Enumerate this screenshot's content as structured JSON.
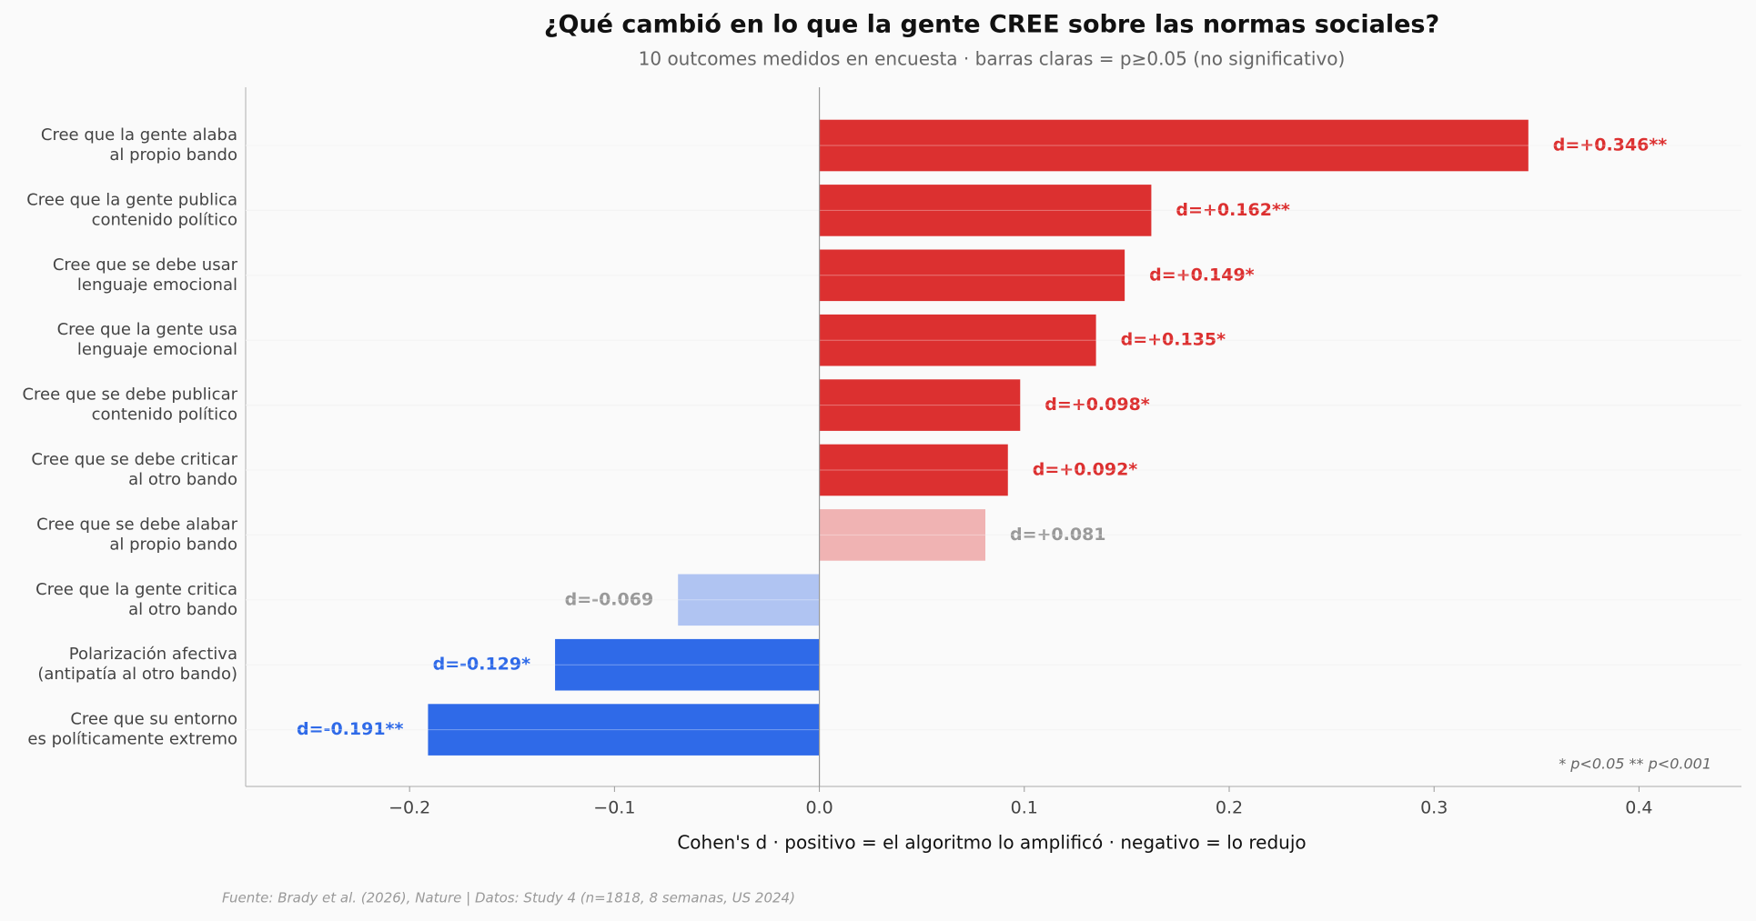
{
  "chart_data": {
    "type": "barh",
    "title": "¿Qué cambió en lo que la gente CREE sobre las normas sociales?",
    "subtitle": "10 outcomes medidos en encuesta · barras claras = p≥0.05 (no significativo)",
    "x_label": "Cohen's d  ·  positivo = el algoritmo lo amplificó  ·  negativo = lo redujo",
    "annotation": "* p<0.05    ** p<0.001",
    "source": "Fuente: Brady et al. (2026), Nature | Datos: Study 4 (n=1818, 8 semanas, US 2024)",
    "categories": [
      [
        "Cree que la gente alaba",
        "al propio bando"
      ],
      [
        "Cree que la gente publica",
        "contenido político"
      ],
      [
        "Cree que se debe usar",
        "lenguaje emocional"
      ],
      [
        "Cree que la gente usa",
        "lenguaje emocional"
      ],
      [
        "Cree que se debe publicar",
        "contenido político"
      ],
      [
        "Cree que se debe criticar",
        "al otro bando"
      ],
      [
        "Cree que se debe alabar",
        "al propio bando"
      ],
      [
        "Cree que la gente critica",
        "al otro bando"
      ],
      [
        "Polarización afectiva",
        "(antipatía al otro bando)"
      ],
      [
        "Cree que su entorno",
        "es políticamente extremo"
      ]
    ],
    "values": [
      0.346,
      0.162,
      0.149,
      0.135,
      0.098,
      0.092,
      0.081,
      -0.069,
      -0.129,
      -0.191
    ],
    "value_labels": [
      "d=+0.346**",
      "d=+0.162**",
      "d=+0.149*",
      "d=+0.135*",
      "d=+0.098*",
      "d=+0.092*",
      "d=+0.081",
      "d=-0.069",
      "d=-0.129*",
      "d=-0.191**"
    ],
    "colors": [
      "#dc3030",
      "#dc3030",
      "#dc3030",
      "#dc3030",
      "#dc3030",
      "#dc3030",
      "#f0b3b3",
      "#b0c4f2",
      "#2f6ae8",
      "#2f6ae8"
    ],
    "label_colors": [
      "#dc3030",
      "#dc3030",
      "#dc3030",
      "#dc3030",
      "#dc3030",
      "#dc3030",
      "#999999",
      "#999999",
      "#2f6ae8",
      "#2f6ae8"
    ],
    "xlim": [
      -0.28,
      0.45
    ],
    "xticks": [
      {
        "value": -0.2,
        "label": "−0.2"
      },
      {
        "value": -0.1,
        "label": "−0.1"
      },
      {
        "value": 0,
        "label": "0.0"
      },
      0.1,
      0.2,
      0.3,
      0.4
    ],
    "grid": true
  }
}
